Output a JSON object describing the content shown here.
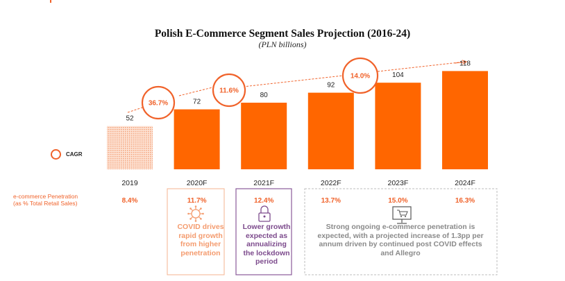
{
  "title": "Polish E-Commerce Segment Sales Projection (2016-24)",
  "subtitle": "(PLN billions)",
  "legend": {
    "label": "CAGR"
  },
  "colors": {
    "accent": "#ff6600",
    "cagr": "#f0622a",
    "hatch": "#f6b38f",
    "purple": "#8a5a9a",
    "grey": "#bdbdbd"
  },
  "chart_data": {
    "type": "bar",
    "title": "Polish E-Commerce Segment Sales Projection (2016-24)",
    "subtitle": "(PLN billions)",
    "categories": [
      "2019",
      "2020F",
      "2021F",
      "2022F",
      "2023F",
      "2024F"
    ],
    "values": [
      52,
      72,
      80,
      92,
      104,
      118
    ],
    "value_labels": [
      "52",
      "72",
      "80",
      "92",
      "104",
      "118"
    ],
    "ylim": [
      0,
      120
    ],
    "grid": false,
    "cagr": [
      {
        "label": "36.7%",
        "value": 36.7
      },
      {
        "label": "11.6%",
        "value": 11.6
      },
      {
        "label": "14.0%",
        "value": 14.0
      }
    ],
    "penetration": {
      "label_line1": "e-commerce Penetration",
      "label_line2": "(as % Total Retail Sales)",
      "values": [
        "8.4%",
        "11.7%",
        "12.4%",
        "13.7%",
        "15.0%",
        "16.3%"
      ]
    }
  },
  "notes": {
    "covid": [
      "COVID drives",
      "rapid growth",
      "from higher",
      "penetration"
    ],
    "lower": [
      "Lower growth",
      "expected as",
      "annualizing",
      "the lockdown",
      "period"
    ],
    "strong": [
      "Strong ongoing e-commerce penetration is",
      "expected, with a projected increase of 1.3pp per",
      "annum driven by continued post COVID effects",
      "and Allegro"
    ]
  }
}
